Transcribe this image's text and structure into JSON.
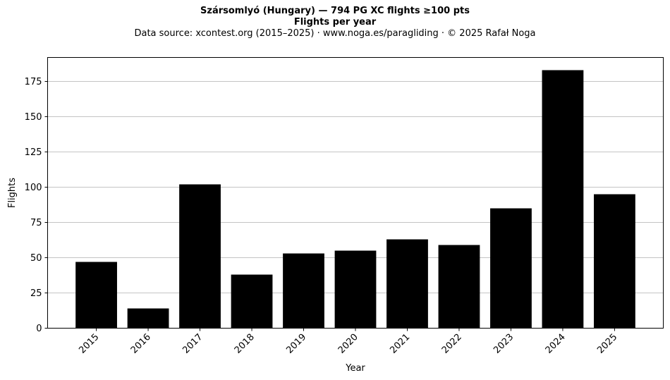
{
  "chart_data": {
    "type": "bar",
    "title": "Szársomlyó (Hungary)  —  794 PG XC flights ≥100 pts",
    "subtitle": "Flights per year",
    "caption": "Data source: xcontest.org (2015–2025)  ·  www.noga.es/paragliding  ·  © 2025 Rafał Noga",
    "xlabel": "Year",
    "ylabel": "Flights",
    "categories": [
      "2015",
      "2016",
      "2017",
      "2018",
      "2019",
      "2020",
      "2021",
      "2022",
      "2023",
      "2024",
      "2025"
    ],
    "values": [
      47,
      14,
      102,
      38,
      53,
      55,
      63,
      59,
      85,
      183,
      95
    ],
    "ylim": [
      0,
      192
    ],
    "yticks": [
      0,
      25,
      50,
      75,
      100,
      125,
      150,
      175
    ],
    "grid": "horizontal",
    "bar_color": "#000000"
  }
}
